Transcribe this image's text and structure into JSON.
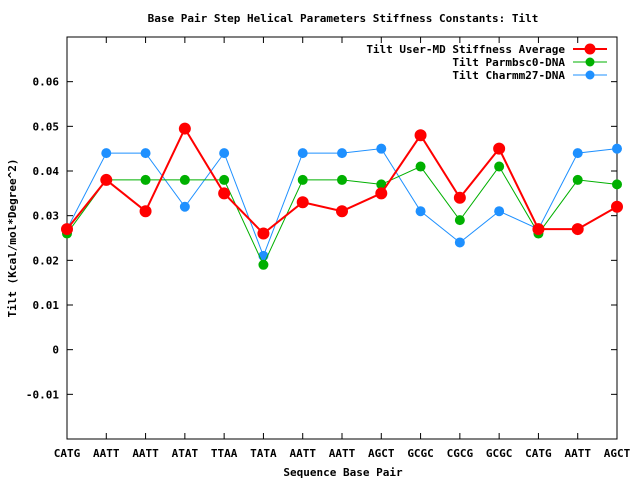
{
  "chart_data": {
    "type": "line",
    "title": "Base Pair Step Helical Parameters Stiffness Constants: Tilt",
    "xlabel": "Sequence Base Pair",
    "ylabel": "Tilt (Kcal/mol*Degree^2)",
    "categories": [
      "CATG",
      "AATT",
      "AATT",
      "ATAT",
      "TTAA",
      "TATA",
      "AATT",
      "AATT",
      "AGCT",
      "GCGC",
      "CGCG",
      "GCGC",
      "CATG",
      "AATT",
      "AGCT"
    ],
    "ylim": [
      -0.02,
      0.07
    ],
    "yticks": [
      -0.01,
      0,
      0.01,
      0.02,
      0.03,
      0.04,
      0.05,
      0.06
    ],
    "ytick_labels": [
      "-0.01",
      "0",
      "0.01",
      "0.02",
      "0.03",
      "0.04",
      "0.05",
      "0.06"
    ],
    "grid": false,
    "legend_position": "top-right",
    "series": [
      {
        "name": "Tilt User-MD Stiffness Average",
        "color": "#ff0000",
        "values": [
          0.027,
          0.038,
          0.031,
          0.0495,
          0.035,
          0.026,
          0.033,
          0.031,
          0.035,
          0.048,
          0.034,
          0.045,
          0.027,
          0.027,
          0.032
        ]
      },
      {
        "name": "Tilt Parmbsc0-DNA",
        "color": "#00b000",
        "values": [
          0.026,
          0.038,
          0.038,
          0.038,
          0.038,
          0.019,
          0.038,
          0.038,
          0.037,
          0.041,
          0.029,
          0.041,
          0.026,
          0.038,
          0.037
        ]
      },
      {
        "name": "Tilt Charmm27-DNA",
        "color": "#1e90ff",
        "values": [
          0.027,
          0.044,
          0.044,
          0.032,
          0.044,
          0.021,
          0.044,
          0.044,
          0.045,
          0.031,
          0.024,
          0.031,
          0.027,
          0.044,
          0.045
        ]
      }
    ]
  }
}
